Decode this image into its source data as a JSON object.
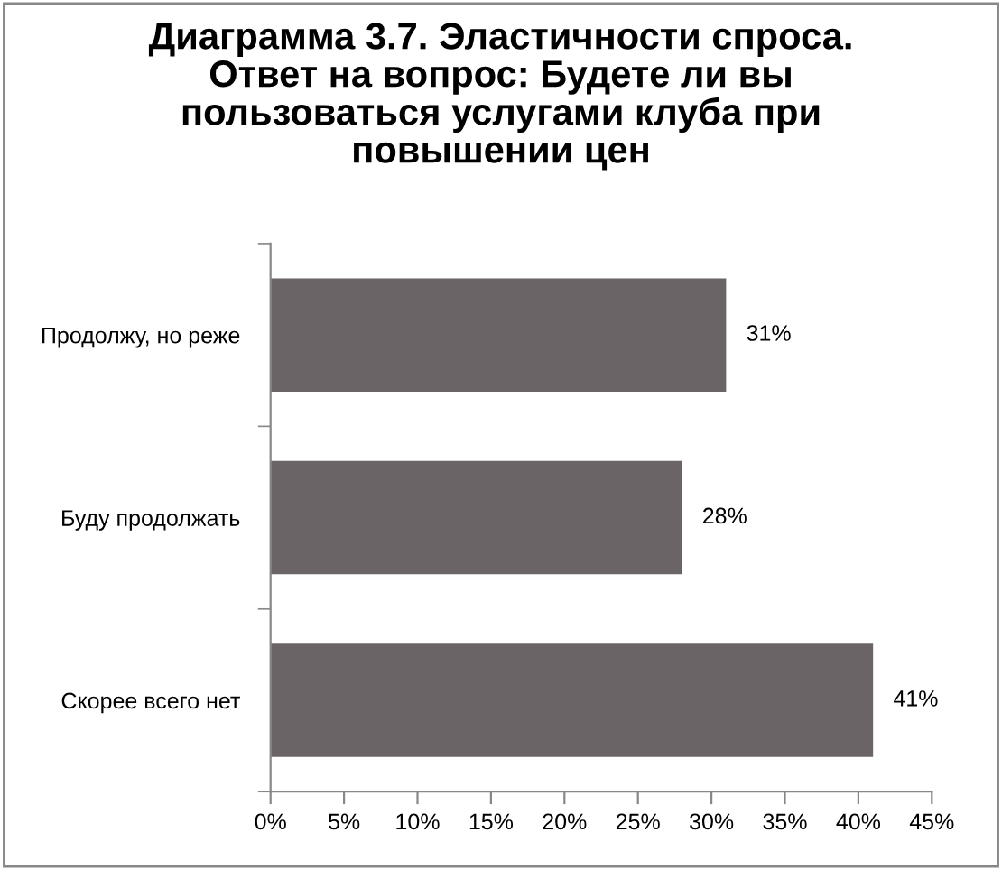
{
  "chart_data": {
    "type": "bar",
    "orientation": "horizontal",
    "title": "Диаграмма 3.7. Эластичности спроса.\nОтвет на вопрос: Будете ли вы\nпользоваться услугами клуба при\nповышении цен",
    "categories": [
      "Продолжу, но реже",
      "Буду продолжать",
      "Скорее всего нет"
    ],
    "values": [
      31,
      28,
      41
    ],
    "value_labels": [
      "31%",
      "28%",
      "41%"
    ],
    "color": "#6b6466",
    "xlim": [
      0,
      45
    ],
    "xticks": [
      {
        "value": 0,
        "label": "0%"
      },
      {
        "value": 5,
        "label": "5%"
      },
      {
        "value": 10,
        "label": "10%"
      },
      {
        "value": 15,
        "label": "15%"
      },
      {
        "value": 20,
        "label": "20%"
      },
      {
        "value": 25,
        "label": "25%"
      },
      {
        "value": 30,
        "label": "30%"
      },
      {
        "value": 35,
        "label": "35%"
      },
      {
        "value": 40,
        "label": "40%"
      },
      {
        "value": 45,
        "label": "45%"
      }
    ],
    "grid": false
  }
}
